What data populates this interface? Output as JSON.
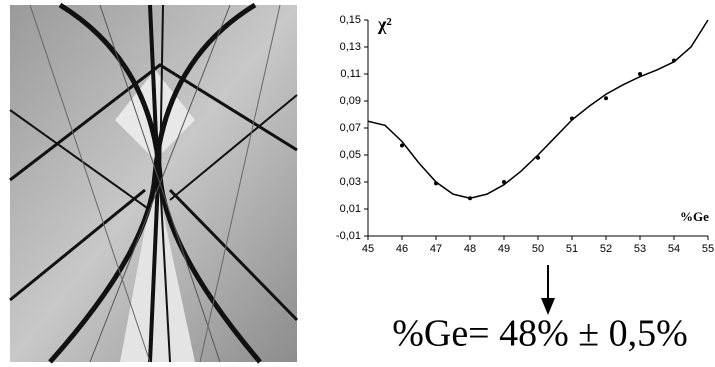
{
  "chart_data": {
    "type": "line",
    "y_label": "χ²",
    "x_label": "%Ge",
    "annotation": "%Ge= 48% ± 0,5%",
    "series": [
      {
        "mode": "line",
        "color": "#000000",
        "x": [
          45,
          45.5,
          46,
          46.5,
          47,
          47.5,
          48,
          48.5,
          49,
          49.5,
          50,
          50.5,
          51,
          51.5,
          52,
          52.5,
          53,
          53.5,
          54,
          54.5,
          55
        ],
        "values": [
          0.075,
          0.072,
          0.06,
          0.044,
          0.03,
          0.021,
          0.018,
          0.021,
          0.028,
          0.038,
          0.05,
          0.063,
          0.076,
          0.086,
          0.095,
          0.102,
          0.108,
          0.113,
          0.119,
          0.13,
          0.15
        ]
      },
      {
        "mode": "markers",
        "color": "#000000",
        "x": [
          46,
          47,
          48,
          49,
          50,
          51,
          52,
          53,
          54
        ],
        "values": [
          0.057,
          0.029,
          0.018,
          0.03,
          0.048,
          0.077,
          0.092,
          0.11,
          0.12
        ]
      }
    ],
    "xlim": [
      45,
      55
    ],
    "xticks": [
      45,
      46,
      47,
      48,
      49,
      50,
      51,
      52,
      53,
      54,
      55
    ],
    "ylim": [
      -0.01,
      0.15
    ],
    "yticks": [
      {
        "value": -0.01,
        "label": "-0,01"
      },
      {
        "value": 0.01,
        "label": "0,01"
      },
      {
        "value": 0.03,
        "label": "0,03"
      },
      {
        "value": 0.05,
        "label": "0,05"
      },
      {
        "value": 0.07,
        "label": "0,07"
      },
      {
        "value": 0.09,
        "label": "0,09"
      },
      {
        "value": 0.11,
        "label": "0,11"
      },
      {
        "value": 0.13,
        "label": "0,13"
      },
      {
        "value": 0.15,
        "label": "0,15"
      }
    ]
  }
}
